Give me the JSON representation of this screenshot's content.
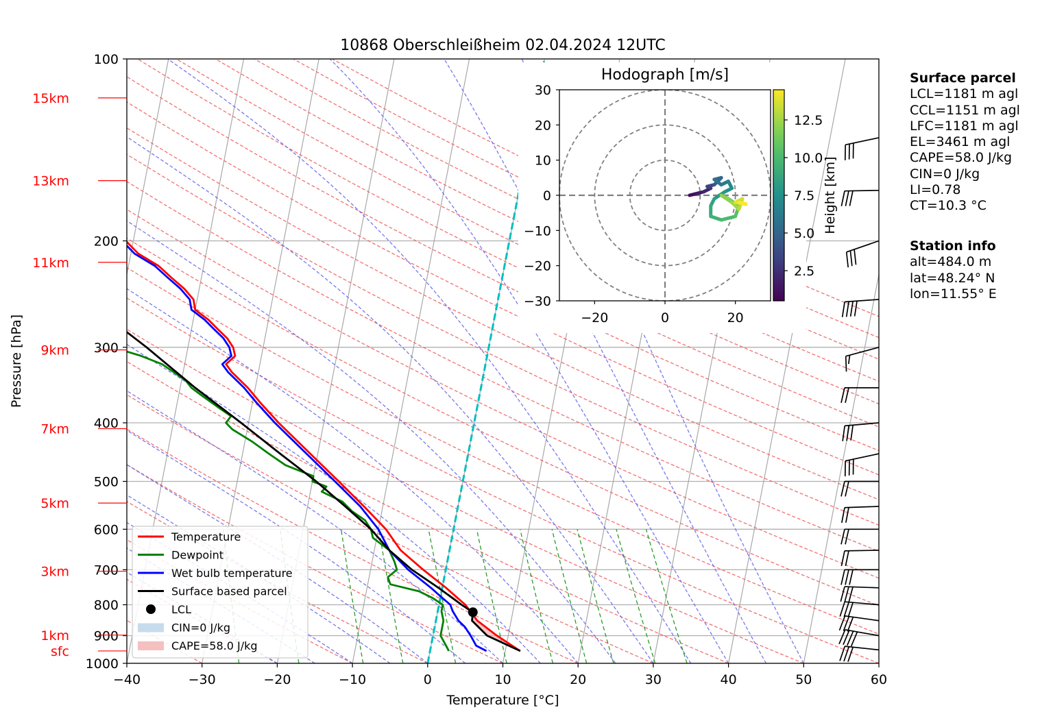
{
  "title": "10868 Oberschleißheim 02.04.2024 12UTC",
  "chart_data": {
    "type": "line",
    "title": "10868 Oberschleißheim 02.04.2024 12UTC",
    "xlabel": "Temperature [°C]",
    "ylabel": "Pressure [hPa]",
    "xlim": [
      -40,
      60
    ],
    "ylim": [
      1000,
      100
    ],
    "y_scale": "log",
    "grid": true,
    "x_ticks": [
      "−40",
      "−30",
      "−20",
      "−10",
      "0",
      "10",
      "20",
      "30",
      "40",
      "50",
      "60"
    ],
    "y_ticks": [
      "100",
      "200",
      "300",
      "400",
      "500",
      "600",
      "700",
      "800",
      "900",
      "1000"
    ],
    "height_labels": [
      {
        "label": "sfc",
        "p": 954
      },
      {
        "label": "1km",
        "p": 898
      },
      {
        "label": "3km",
        "p": 704
      },
      {
        "label": "5km",
        "p": 543
      },
      {
        "label": "7km",
        "p": 409
      },
      {
        "label": "9km",
        "p": 303
      },
      {
        "label": "11km",
        "p": 217
      },
      {
        "label": "13km",
        "p": 159
      },
      {
        "label": "15km",
        "p": 116
      }
    ],
    "legend": {
      "position": "lower-left",
      "entries": [
        "Temperature",
        "Dewpoint",
        "Wet bulb temperature",
        "Surface based parcel",
        "LCL",
        "CIN=0 J/kg",
        "CAPE=58.0 J/kg"
      ]
    },
    "series": [
      {
        "name": "Temperature",
        "color": "#ff0000",
        "points": [
          [
            954,
            12.0
          ],
          [
            900,
            8.5
          ],
          [
            850,
            5.5
          ],
          [
            800,
            3.5
          ],
          [
            750,
            0.5
          ],
          [
            700,
            -3.0
          ],
          [
            650,
            -6.5
          ],
          [
            600,
            -9.0
          ],
          [
            550,
            -12.5
          ],
          [
            500,
            -16.5
          ],
          [
            450,
            -21.0
          ],
          [
            400,
            -26.0
          ],
          [
            370,
            -29.0
          ],
          [
            350,
            -31.0
          ],
          [
            330,
            -33.5
          ],
          [
            320,
            -34.5
          ],
          [
            310,
            -33.5
          ],
          [
            300,
            -34.0
          ],
          [
            290,
            -35.0
          ],
          [
            280,
            -36.5
          ],
          [
            270,
            -38.0
          ],
          [
            260,
            -40.0
          ],
          [
            250,
            -40.5
          ],
          [
            240,
            -42.0
          ],
          [
            230,
            -44.0
          ],
          [
            220,
            -46.0
          ],
          [
            210,
            -49.0
          ],
          [
            200,
            -51.0
          ],
          [
            190,
            -53.0
          ],
          [
            180,
            -55.0
          ],
          [
            170,
            -57.0
          ],
          [
            160,
            -60.0
          ],
          [
            150,
            -63.0
          ],
          [
            140,
            -67.0
          ],
          [
            130,
            -70.0
          ],
          [
            120,
            -75.0
          ],
          [
            115,
            -78.0
          ]
        ]
      },
      {
        "name": "Dewpoint",
        "color": "#008000",
        "points": [
          [
            954,
            2.5
          ],
          [
            935,
            2.0
          ],
          [
            900,
            1.0
          ],
          [
            870,
            1.0
          ],
          [
            850,
            1.0
          ],
          [
            820,
            0.5
          ],
          [
            800,
            0.5
          ],
          [
            780,
            -1.0
          ],
          [
            760,
            -3.0
          ],
          [
            740,
            -7.0
          ],
          [
            720,
            -7.5
          ],
          [
            700,
            -6.5
          ],
          [
            680,
            -7.0
          ],
          [
            650,
            -8.0
          ],
          [
            620,
            -10.5
          ],
          [
            600,
            -11.0
          ],
          [
            580,
            -12.0
          ],
          [
            560,
            -14.0
          ],
          [
            540,
            -15.5
          ],
          [
            520,
            -18.5
          ],
          [
            510,
            -18.0
          ],
          [
            500,
            -20.0
          ],
          [
            490,
            -20.0
          ],
          [
            480,
            -22.0
          ],
          [
            470,
            -24.0
          ],
          [
            450,
            -26.5
          ],
          [
            430,
            -29.0
          ],
          [
            410,
            -32.0
          ],
          [
            400,
            -33.0
          ],
          [
            390,
            -32.5
          ],
          [
            380,
            -34.0
          ],
          [
            360,
            -37.0
          ],
          [
            350,
            -38.5
          ],
          [
            340,
            -39.5
          ],
          [
            320,
            -43.0
          ],
          [
            310,
            -46.0
          ],
          [
            300,
            -50.0
          ],
          [
            290,
            -49.0
          ],
          [
            280,
            -52.0
          ],
          [
            270,
            -52.0
          ],
          [
            260,
            -55.5
          ],
          [
            250,
            -57.5
          ],
          [
            240,
            -57.5
          ],
          [
            230,
            -60.0
          ],
          [
            220,
            -61.0
          ],
          [
            210,
            -62.5
          ],
          [
            200,
            -65.0
          ],
          [
            190,
            -67.0
          ],
          [
            180,
            -69.0
          ],
          [
            170,
            -71.5
          ],
          [
            160,
            -74.0
          ],
          [
            150,
            -76.0
          ],
          [
            140,
            -79.0
          ],
          [
            130,
            -82.0
          ],
          [
            120,
            -85.0
          ],
          [
            117,
            -86.5
          ]
        ]
      },
      {
        "name": "Wet bulb temperature",
        "color": "#0000ff",
        "points": [
          [
            954,
            7.5
          ],
          [
            935,
            6.0
          ],
          [
            900,
            5.0
          ],
          [
            870,
            4.0
          ],
          [
            850,
            3.0
          ],
          [
            820,
            2.0
          ],
          [
            800,
            1.5
          ],
          [
            780,
            0.3
          ],
          [
            750,
            -1.5
          ],
          [
            700,
            -5.0
          ],
          [
            650,
            -8.0
          ],
          [
            600,
            -10.0
          ],
          [
            550,
            -13.0
          ],
          [
            500,
            -17.0
          ],
          [
            450,
            -21.5
          ],
          [
            400,
            -26.5
          ],
          [
            370,
            -29.5
          ],
          [
            350,
            -31.5
          ],
          [
            330,
            -34.0
          ],
          [
            320,
            -35.0
          ],
          [
            310,
            -34.0
          ],
          [
            300,
            -34.5
          ],
          [
            290,
            -35.5
          ],
          [
            280,
            -37.0
          ],
          [
            270,
            -38.5
          ],
          [
            260,
            -40.5
          ],
          [
            250,
            -41.0
          ],
          [
            240,
            -42.5
          ],
          [
            230,
            -44.5
          ],
          [
            220,
            -46.5
          ],
          [
            210,
            -49.5
          ],
          [
            200,
            -51.5
          ],
          [
            190,
            -53.5
          ],
          [
            180,
            -55.5
          ],
          [
            170,
            -57.5
          ],
          [
            160,
            -60.5
          ],
          [
            150,
            -63.5
          ],
          [
            140,
            -67.5
          ],
          [
            130,
            -70.5
          ],
          [
            120,
            -75.5
          ],
          [
            115,
            -78.5
          ]
        ]
      },
      {
        "name": "Surface based parcel",
        "color": "#000000",
        "points": [
          [
            954,
            12.0
          ],
          [
            900,
            7.2
          ],
          [
            850,
            4.8
          ],
          [
            823,
            4.7
          ],
          [
            800,
            3.0
          ],
          [
            750,
            -0.5
          ],
          [
            700,
            -4.5
          ],
          [
            650,
            -8.0
          ],
          [
            600,
            -11.0
          ],
          [
            550,
            -15.0
          ],
          [
            500,
            -19.5
          ],
          [
            450,
            -25.0
          ],
          [
            400,
            -31.0
          ],
          [
            350,
            -38.0
          ],
          [
            300,
            -45.5
          ],
          [
            250,
            -55.0
          ],
          [
            200,
            -66.0
          ],
          [
            150,
            -80.0
          ],
          [
            135,
            -85.0
          ]
        ]
      }
    ],
    "lcl": {
      "p": 823,
      "t": 4.7
    },
    "cape_region": [
      [
        954,
        12.0
      ],
      [
        900,
        7.2
      ],
      [
        850,
        4.8
      ],
      [
        823,
        4.7
      ],
      [
        780,
        1.8
      ],
      [
        740,
        -1.5
      ]
    ],
    "hodograph": {
      "title": "Hodograph [m/s]",
      "xlim": [
        -30,
        30
      ],
      "ylim": [
        -30,
        30
      ],
      "x_ticks": [
        "−20",
        "0",
        "20"
      ],
      "y_ticks": [
        "30",
        "20",
        "10",
        "0",
        "−10",
        "−20",
        "−30"
      ],
      "rings": [
        10,
        20,
        30
      ],
      "colorbar_label": "Height [km]",
      "colorbar_ticks": [
        "2.5",
        "5.0",
        "7.5",
        "10.0",
        "12.5"
      ],
      "colorbar_range": [
        0.5,
        14.5
      ],
      "points": [
        [
          7,
          0,
          0.5
        ],
        [
          9,
          0.5,
          1.0
        ],
        [
          11,
          1,
          1.6
        ],
        [
          13,
          2,
          2.2
        ],
        [
          12,
          2.5,
          2.8
        ],
        [
          14,
          3,
          3.5
        ],
        [
          15,
          4,
          4.2
        ],
        [
          16,
          5,
          4.8
        ],
        [
          14,
          4.5,
          5.2
        ],
        [
          16,
          3,
          5.8
        ],
        [
          18,
          4,
          6.3
        ],
        [
          19,
          2,
          7.0
        ],
        [
          17,
          1,
          7.5
        ],
        [
          14,
          -1,
          8.0
        ],
        [
          13,
          -3,
          8.5
        ],
        [
          13,
          -6,
          9.0
        ],
        [
          16,
          -7,
          9.5
        ],
        [
          20,
          -6,
          10.0
        ],
        [
          21,
          -3,
          10.5
        ],
        [
          18,
          -1,
          11.0
        ],
        [
          16,
          0,
          11.5
        ],
        [
          19,
          -2,
          12.0
        ],
        [
          21,
          -4,
          12.5
        ],
        [
          22,
          -1,
          13.0
        ],
        [
          20,
          -2,
          13.5
        ],
        [
          23,
          -2.5,
          14.0
        ],
        [
          21,
          -2,
          14.5
        ]
      ]
    },
    "wind_barbs": [
      {
        "p": 135,
        "speed_kt": 30,
        "dir": 282
      },
      {
        "p": 165,
        "speed_kt": 30,
        "dir": 271
      },
      {
        "p": 200,
        "speed_kt": 30,
        "dir": 289
      },
      {
        "p": 250,
        "speed_kt": 40,
        "dir": 274
      },
      {
        "p": 300,
        "speed_kt": 15,
        "dir": 285
      },
      {
        "p": 350,
        "speed_kt": 20,
        "dir": 270
      },
      {
        "p": 400,
        "speed_kt": 30,
        "dir": 275
      },
      {
        "p": 450,
        "speed_kt": 30,
        "dir": 282
      },
      {
        "p": 500,
        "speed_kt": 20,
        "dir": 270
      },
      {
        "p": 550,
        "speed_kt": 20,
        "dir": 272
      },
      {
        "p": 600,
        "speed_kt": 20,
        "dir": 270
      },
      {
        "p": 650,
        "speed_kt": 20,
        "dir": 271
      },
      {
        "p": 700,
        "speed_kt": 30,
        "dir": 270
      },
      {
        "p": 750,
        "speed_kt": 30,
        "dir": 268
      },
      {
        "p": 800,
        "speed_kt": 30,
        "dir": 265
      },
      {
        "p": 850,
        "speed_kt": 30,
        "dir": 262
      },
      {
        "p": 900,
        "speed_kt": 40,
        "dir": 260
      },
      {
        "p": 950,
        "speed_kt": 30,
        "dir": 264
      }
    ]
  },
  "surface_parcel": {
    "heading": "Surface parcel",
    "lines": [
      "LCL=1181 m agl",
      "CCL=1151 m agl",
      "LFC=1181 m agl",
      "EL=3461 m agl",
      "CAPE=58.0 J/kg",
      "CIN=0 J/kg",
      "LI=0.78",
      "CT=10.3 °C"
    ]
  },
  "station_info": {
    "heading": "Station info",
    "lines": [
      "alt=484.0 m",
      "lat=48.24° N",
      "lon=11.55° E"
    ]
  }
}
